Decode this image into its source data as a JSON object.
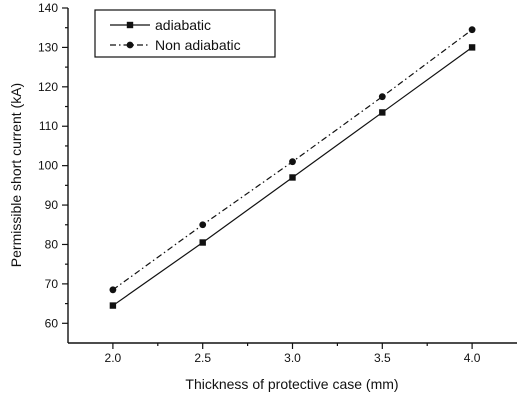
{
  "chart_data": {
    "type": "line",
    "title": "",
    "xlabel": "Thickness of protective case (mm)",
    "ylabel": "Permissible short current (kA)",
    "xlim": [
      1.75,
      4.25
    ],
    "ylim": [
      55,
      140
    ],
    "x_ticks": [
      2.0,
      2.5,
      3.0,
      3.5,
      4.0
    ],
    "x_tick_labels": [
      "2.0",
      "2.5",
      "3.0",
      "3.5",
      "4.0"
    ],
    "y_ticks": [
      60,
      70,
      80,
      90,
      100,
      110,
      120,
      130,
      140
    ],
    "y_tick_labels": [
      "60",
      "70",
      "80",
      "90",
      "100",
      "110",
      "120",
      "130",
      "140"
    ],
    "grid": false,
    "legend_position": "top-left",
    "series": [
      {
        "name": "adiabatic",
        "marker": "square",
        "line_style": "solid",
        "color": "#111111",
        "x": [
          2.0,
          2.5,
          3.0,
          3.5,
          4.0
        ],
        "values": [
          64.5,
          80.5,
          97.0,
          113.5,
          130.0
        ]
      },
      {
        "name": "Non adiabatic",
        "marker": "circle",
        "line_style": "dash-dot",
        "color": "#111111",
        "x": [
          2.0,
          2.5,
          3.0,
          3.5,
          4.0
        ],
        "values": [
          68.5,
          85.0,
          101.0,
          117.5,
          134.5
        ]
      }
    ]
  }
}
